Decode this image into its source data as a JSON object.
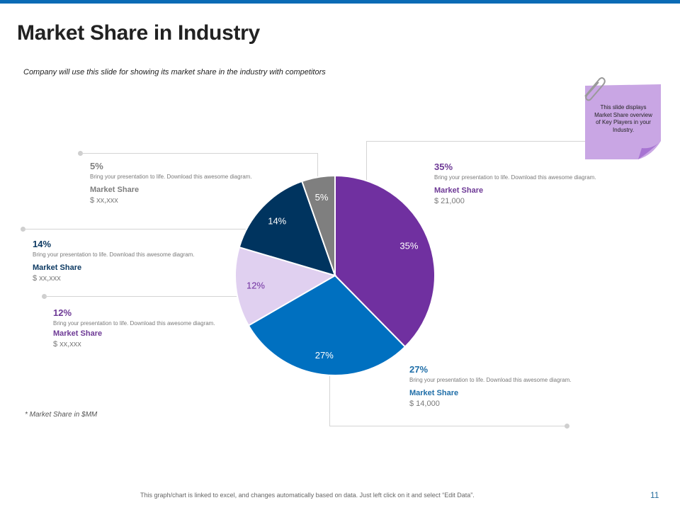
{
  "slide": {
    "title": "Market Share in Industry",
    "subtitle": "Company will use this slide for showing its market share in the industry with competitors",
    "note": "* Market Share in $MM",
    "footer": "This graph/chart is linked to excel, and changes automatically based on data. Just left click on it and select “Edit Data”.",
    "page_number": "11",
    "sticky_note": "This slide displays Market Share overview of Key Players in your Industry."
  },
  "callouts": [
    {
      "pct": "5%",
      "desc": "Bring your presentation to life. Download this awesome diagram.",
      "label": "Market Share",
      "value": "$ xx,xxx",
      "color": "#7f7f7f"
    },
    {
      "pct": "14%",
      "desc": "Bring your presentation to life. Download this awesome diagram.",
      "label": "Market Share",
      "value": "$ xx,xxx",
      "color": "#0d3a63"
    },
    {
      "pct": "12%",
      "desc": "Bring your presentation to life. Download this awesome diagram.",
      "label": "Market Share",
      "value": "$ xx,xxx",
      "color": "#6e3a96"
    },
    {
      "pct": "35%",
      "desc": "Bring your presentation to life. Download this awesome diagram.",
      "label": "Market Share",
      "value": "$ 21,000",
      "color": "#6e3a96"
    },
    {
      "pct": "27%",
      "desc": "Bring your presentation to life. Download this awesome diagram.",
      "label": "Market Share",
      "value": "$ 14,000",
      "color": "#1f6ea8"
    }
  ],
  "chart_data": {
    "type": "pie",
    "title": "",
    "start_angle_deg": 0,
    "direction": "clockwise",
    "categories": [
      "35%",
      "27%",
      "12%",
      "14%",
      "5%"
    ],
    "values": [
      35,
      27,
      12,
      14,
      5
    ],
    "labels": [
      "35%",
      "27%",
      "12%",
      "14%",
      "5%"
    ],
    "colors": [
      "#7030a0",
      "#0070c0",
      "#e0d0f0",
      "#00345f",
      "#7f7f7f"
    ],
    "label_colors": [
      "#ffffff",
      "#ffffff",
      "#7030a0",
      "#ffffff",
      "#ffffff"
    ]
  }
}
